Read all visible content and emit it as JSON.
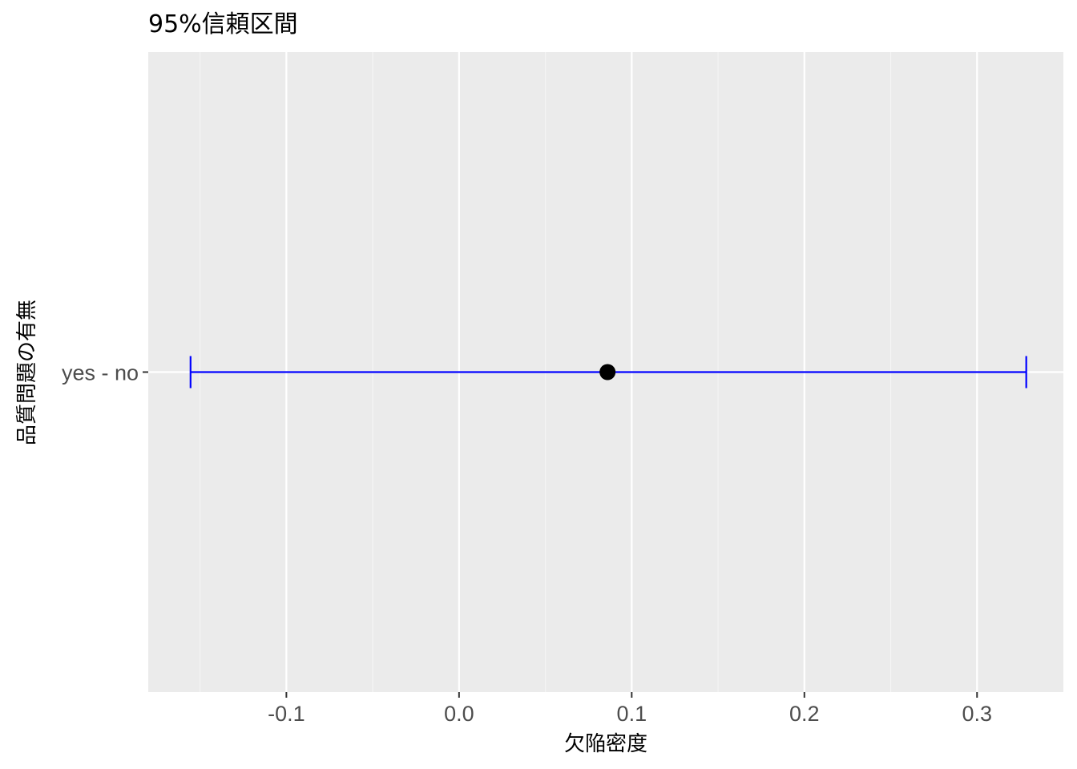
{
  "chart_data": {
    "type": "errorbar",
    "title": "95%信頼区間",
    "xlabel": "欠陥密度",
    "ylabel": "品質問題の有無",
    "categories": [
      "yes - no"
    ],
    "series": [
      {
        "estimate": 0.086,
        "lower": -0.1555,
        "upper": 0.3285
      }
    ],
    "xlim": [
      -0.18,
      0.35
    ],
    "x_ticks": [
      -0.1,
      0.0,
      0.1,
      0.2,
      0.3
    ],
    "x_tick_labels": [
      "-0.1",
      "0.0",
      "0.1",
      "0.2",
      "0.3"
    ],
    "x_minor_ticks": [
      -0.15,
      -0.05,
      0.05,
      0.15,
      0.25
    ],
    "grid": true,
    "legend": "none",
    "colors": {
      "panel_background": "#ebebeb",
      "grid_major": "#ffffff",
      "grid_minor": "#f5f5f5",
      "errorbar": "#0000ff",
      "point": "#000000",
      "tick_label": "#4d4d4d"
    }
  }
}
